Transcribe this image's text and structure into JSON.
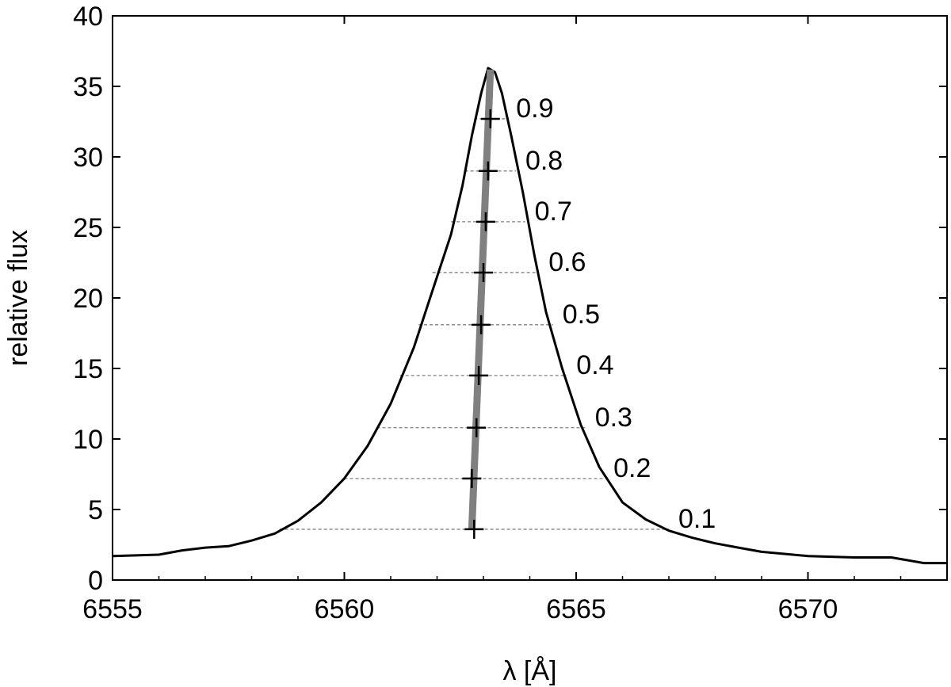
{
  "chart_data": {
    "type": "line",
    "title": "",
    "xlabel": "λ [Å]",
    "ylabel": "relative flux",
    "xlim": [
      6555,
      6573
    ],
    "ylim": [
      0,
      40
    ],
    "xticks": [
      6555,
      6560,
      6565,
      6570
    ],
    "yticks": [
      0,
      5,
      10,
      15,
      20,
      25,
      30,
      35,
      40
    ],
    "grid": false,
    "series": [
      {
        "name": "",
        "color": "#000000",
        "points": [
          [
            6555.0,
            1.7
          ],
          [
            6556.0,
            1.8
          ],
          [
            6556.5,
            2.1
          ],
          [
            6557.0,
            2.3
          ],
          [
            6557.5,
            2.4
          ],
          [
            6558.0,
            2.8
          ],
          [
            6558.5,
            3.3
          ],
          [
            6559.0,
            4.2
          ],
          [
            6559.5,
            5.5
          ],
          [
            6560.0,
            7.2
          ],
          [
            6560.5,
            9.5
          ],
          [
            6561.0,
            12.5
          ],
          [
            6561.5,
            16.5
          ],
          [
            6561.9,
            20.5
          ],
          [
            6562.3,
            24.5
          ],
          [
            6562.55,
            28.0
          ],
          [
            6562.75,
            31.5
          ],
          [
            6562.95,
            34.5
          ],
          [
            6563.1,
            36.3
          ],
          [
            6563.25,
            36.0
          ],
          [
            6563.4,
            34.5
          ],
          [
            6563.6,
            31.5
          ],
          [
            6563.85,
            27.5
          ],
          [
            6564.1,
            23.0
          ],
          [
            6564.35,
            19.0
          ],
          [
            6564.7,
            15.0
          ],
          [
            6565.1,
            11.0
          ],
          [
            6565.5,
            8.0
          ],
          [
            6566.0,
            5.5
          ],
          [
            6566.5,
            4.3
          ],
          [
            6567.0,
            3.5
          ],
          [
            6567.5,
            3.0
          ],
          [
            6568.0,
            2.6
          ],
          [
            6568.5,
            2.3
          ],
          [
            6569.0,
            2.0
          ],
          [
            6570.0,
            1.7
          ],
          [
            6571.0,
            1.6
          ],
          [
            6571.8,
            1.6
          ],
          [
            6572.5,
            1.2
          ],
          [
            6573.0,
            1.2
          ]
        ]
      }
    ],
    "bisector_levels": [
      {
        "label": "0.1",
        "y": 3.6,
        "x_left": 6558.6,
        "x_right": 6567.0,
        "x_center": 6562.8
      },
      {
        "label": "0.2",
        "y": 7.2,
        "x_left": 6560.0,
        "x_right": 6565.6,
        "x_center": 6562.75
      },
      {
        "label": "0.3",
        "y": 10.8,
        "x_left": 6560.7,
        "x_right": 6565.2,
        "x_center": 6562.85
      },
      {
        "label": "0.4",
        "y": 14.5,
        "x_left": 6561.2,
        "x_right": 6564.8,
        "x_center": 6562.9
      },
      {
        "label": "0.5",
        "y": 18.1,
        "x_left": 6561.6,
        "x_right": 6564.5,
        "x_center": 6562.95
      },
      {
        "label": "0.6",
        "y": 21.8,
        "x_left": 6561.9,
        "x_right": 6564.2,
        "x_center": 6563.0
      },
      {
        "label": "0.7",
        "y": 25.4,
        "x_left": 6562.3,
        "x_right": 6563.9,
        "x_center": 6563.05
      },
      {
        "label": "0.8",
        "y": 29.0,
        "x_left": 6562.6,
        "x_right": 6563.7,
        "x_center": 6563.1
      },
      {
        "label": "0.9",
        "y": 32.7,
        "x_left": 6562.8,
        "x_right": 6563.5,
        "x_center": 6563.15
      }
    ],
    "bisector_line": {
      "color": "#808080",
      "points": [
        [
          6562.75,
          3.6
        ],
        [
          6563.15,
          36.2
        ]
      ]
    },
    "level_line_color": "#808080"
  }
}
